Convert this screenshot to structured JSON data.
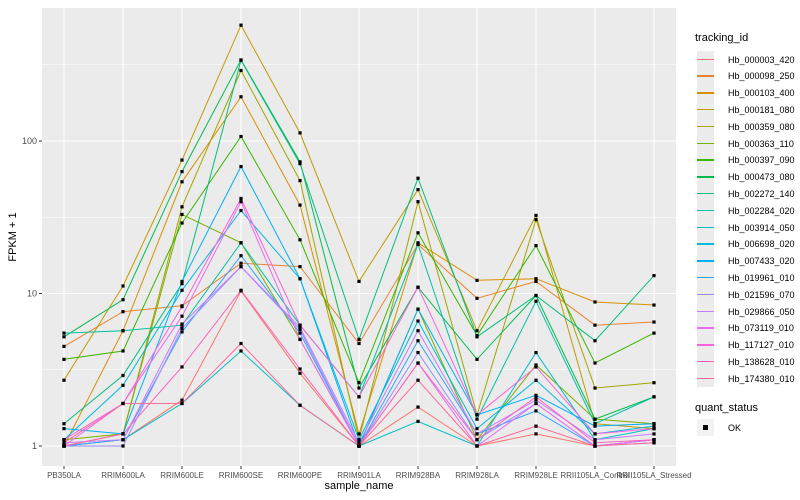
{
  "chart_data": {
    "type": "line",
    "title": "",
    "xlabel": "sample_name",
    "ylabel": "FPKM + 1",
    "y_scale": "log10",
    "y_ticks": [
      1,
      10,
      100
    ],
    "y_minor_breaks": [
      3.1623,
      31.623,
      316.23
    ],
    "ylim": [
      0.74,
      745
    ],
    "grid": true,
    "panel_bg": "#EBEBEB",
    "gridline_color": "#FFFFFF",
    "tick_label_color": "#4D4D4D",
    "point_color": "#000000",
    "point_shape": "square",
    "categories": [
      "PB350LA",
      "RRIM600LA",
      "RRIM600LE",
      "RRIM600SE",
      "RRIM600PE",
      "RRIM901LA",
      "RRIM928BA",
      "RRIM928LA",
      "RRIM928LE",
      "RRII105LA_Control",
      "RRII105LA_Stressed"
    ],
    "series": [
      {
        "name": "Hb_000003_420",
        "color": "#F8766D",
        "values": [
          1.0,
          1.1,
          2.0,
          10.4,
          3.0,
          1.0,
          1.8,
          1.0,
          1.2,
          1.0,
          1.1
        ]
      },
      {
        "name": "Hb_000098_250",
        "color": "#EA8331",
        "values": [
          4.5,
          7.6,
          8.3,
          15.8,
          15.0,
          4.7,
          21.0,
          9.3,
          12.0,
          6.2,
          6.5
        ]
      },
      {
        "name": "Hb_000103_400",
        "color": "#D89000",
        "values": [
          1.0,
          5.7,
          54.0,
          195.0,
          38.0,
          1.2,
          21.5,
          12.2,
          12.5,
          8.8,
          8.4
        ]
      },
      {
        "name": "Hb_000181_080",
        "color": "#C09B00",
        "values": [
          2.7,
          11.2,
          75.0,
          575.0,
          113.0,
          12.0,
          48.0,
          5.7,
          32.5,
          1.4,
          1.3
        ]
      },
      {
        "name": "Hb_000359_080",
        "color": "#A3A500",
        "values": [
          1.0,
          1.2,
          37.0,
          290.0,
          55.0,
          1.1,
          40.0,
          1.6,
          30.5,
          2.4,
          2.6
        ]
      },
      {
        "name": "Hb_000363_110",
        "color": "#7CAE00",
        "values": [
          1.1,
          1.2,
          33.0,
          21.5,
          5.0,
          1.0,
          7.9,
          1.1,
          3.4,
          1.5,
          1.4
        ]
      },
      {
        "name": "Hb_000397_090",
        "color": "#39B600",
        "values": [
          3.7,
          4.2,
          29.0,
          107.0,
          22.5,
          2.6,
          25.0,
          5.3,
          20.6,
          3.5,
          5.5
        ]
      },
      {
        "name": "Hb_000473_080",
        "color": "#00BB4E",
        "values": [
          5.2,
          9.1,
          63.0,
          340.0,
          73.0,
          2.4,
          11.0,
          3.7,
          9.7,
          1.5,
          2.1
        ]
      },
      {
        "name": "Hb_002272_140",
        "color": "#00BF7D",
        "values": [
          1.4,
          2.9,
          11.6,
          338.0,
          71.0,
          5.0,
          57.0,
          5.2,
          9.7,
          4.9,
          13.1
        ]
      },
      {
        "name": "Hb_002284_020",
        "color": "#00C1A3",
        "values": [
          5.5,
          5.7,
          6.2,
          21.5,
          6.2,
          2.1,
          21.0,
          1.5,
          8.9,
          1.4,
          2.1
        ]
      },
      {
        "name": "Hb_003914_050",
        "color": "#00BFC4",
        "values": [
          1.0,
          1.1,
          1.9,
          4.2,
          1.85,
          1.0,
          1.45,
          1.0,
          4.1,
          1.1,
          1.3
        ]
      },
      {
        "name": "Hb_006698_020",
        "color": "#00BAE0",
        "values": [
          1.1,
          2.5,
          10.5,
          35.0,
          12.5,
          1.1,
          6.6,
          1.3,
          2.7,
          1.2,
          1.35
        ]
      },
      {
        "name": "Hb_007433_020",
        "color": "#00B0F6",
        "values": [
          1.3,
          1.2,
          12.0,
          68.0,
          12.5,
          1.0,
          7.9,
          1.6,
          2.15,
          1.35,
          1.4
        ]
      },
      {
        "name": "Hb_019961_010",
        "color": "#35A2FF",
        "values": [
          1.0,
          1.1,
          5.6,
          17.7,
          5.5,
          1.0,
          4.9,
          1.2,
          1.7,
          1.0,
          1.1
        ]
      },
      {
        "name": "Hb_021596_070",
        "color": "#9590FF",
        "values": [
          1.0,
          1.0,
          5.9,
          15.0,
          5.8,
          1.0,
          4.1,
          1.1,
          1.9,
          1.0,
          1.05
        ]
      },
      {
        "name": "Hb_029866_050",
        "color": "#C77CFF",
        "values": [
          1.05,
          1.1,
          6.3,
          15.0,
          6.0,
          1.05,
          5.7,
          1.2,
          2.0,
          1.1,
          1.2
        ]
      },
      {
        "name": "Hb_073119_010",
        "color": "#E76BF3",
        "values": [
          1.0,
          1.9,
          7.1,
          40.0,
          5.0,
          1.0,
          3.5,
          1.0,
          1.9,
          1.0,
          1.1
        ]
      },
      {
        "name": "Hb_117127_010",
        "color": "#FA62DB",
        "values": [
          1.1,
          1.9,
          8.2,
          42.0,
          6.2,
          2.1,
          11.0,
          1.6,
          3.3,
          1.2,
          1.3
        ]
      },
      {
        "name": "Hb_138628_010",
        "color": "#FF62BC",
        "values": [
          1.0,
          1.2,
          3.3,
          10.5,
          3.2,
          1.0,
          3.5,
          1.1,
          2.1,
          1.05,
          1.1
        ]
      },
      {
        "name": "Hb_174380_010",
        "color": "#FF6A98",
        "values": [
          1.05,
          1.9,
          1.9,
          4.7,
          1.85,
          1.0,
          2.7,
          1.0,
          1.35,
          1.0,
          1.05
        ]
      }
    ],
    "legend_position": "right"
  },
  "legend": {
    "tracking_title": "tracking_id",
    "quant_title": "quant_status",
    "quant_items": [
      {
        "label": "OK"
      }
    ]
  }
}
